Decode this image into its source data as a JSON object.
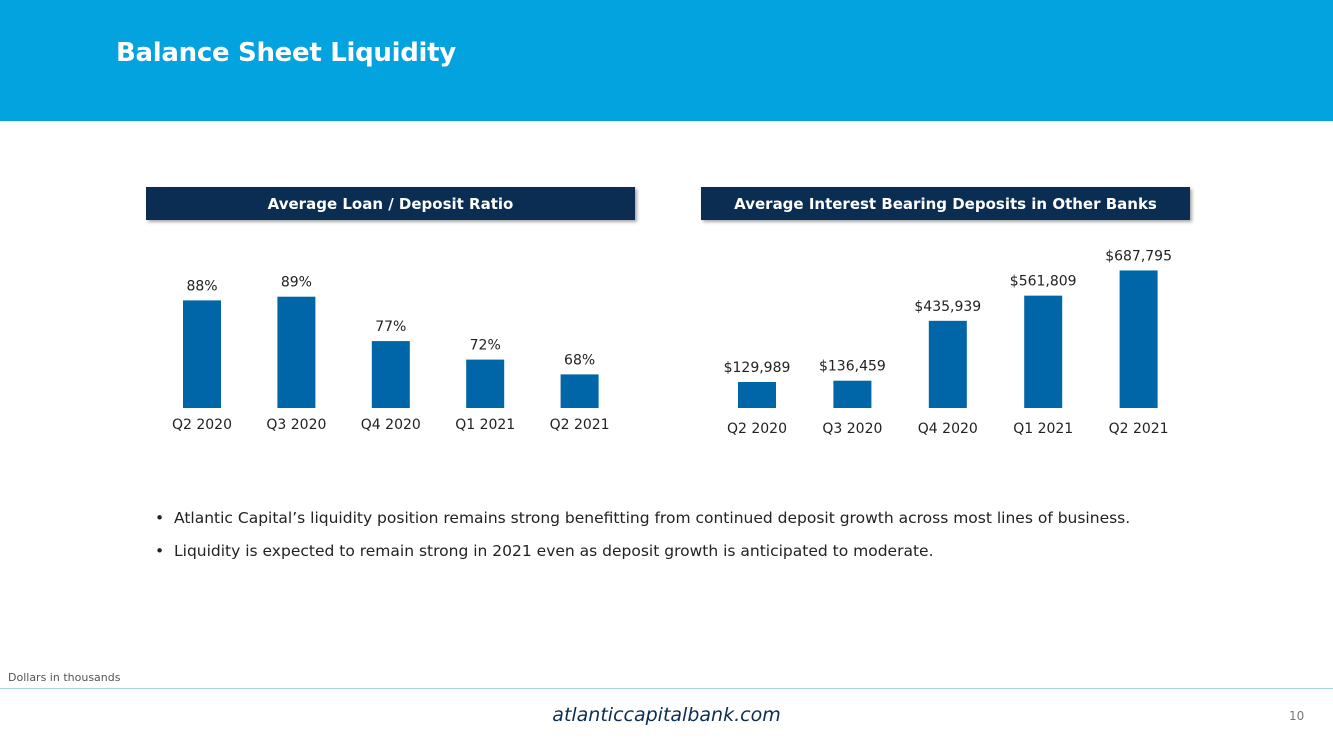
{
  "page": {
    "title": "Balance Sheet Liquidity",
    "footnote": "Dollars in thousands",
    "website": "atlanticcapitalbank.com",
    "page_number": "10",
    "colors": {
      "header": "#03a3e0",
      "panel": "#0b2d52",
      "bar": "#0066a8"
    }
  },
  "bullets": [
    "Atlantic Capital’s liquidity position remains strong benefitting from continued deposit growth across most lines of business.",
    "Liquidity is expected to remain strong in 2021 even as deposit growth is anticipated to moderate."
  ],
  "chart_data": [
    {
      "type": "bar",
      "title": "Average Loan / Deposit Ratio",
      "categories": [
        "Q2 2020",
        "Q3 2020",
        "Q4 2020",
        "Q1 2021",
        "Q2 2021"
      ],
      "values": [
        88,
        89,
        77,
        72,
        68
      ],
      "data_labels": [
        "88%",
        "89%",
        "77%",
        "72%",
        "68%"
      ],
      "unit": "%",
      "ylim": [
        60,
        90
      ],
      "xlabel": "",
      "ylabel": ""
    },
    {
      "type": "bar",
      "title": "Average Interest Bearing Deposits in Other Banks",
      "categories": [
        "Q2 2020",
        "Q3 2020",
        "Q4 2020",
        "Q1 2021",
        "Q2 2021"
      ],
      "values": [
        129989,
        136459,
        435939,
        561809,
        687795
      ],
      "data_labels": [
        "$129,989",
        "$136,459",
        "$435,939",
        "$561,809",
        "$687,795"
      ],
      "unit": "$ thousands",
      "ylim": [
        0,
        700000
      ],
      "xlabel": "",
      "ylabel": ""
    }
  ]
}
